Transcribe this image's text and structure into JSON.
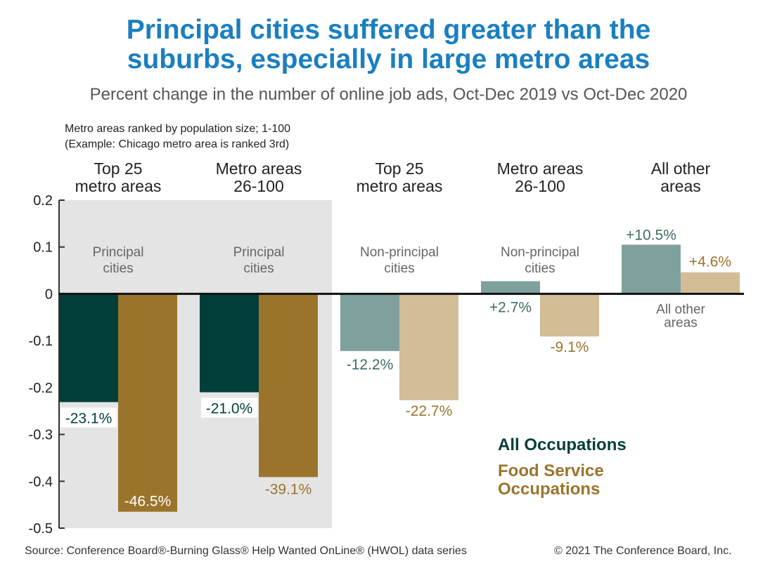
{
  "title_line1": "Principal cities suffered greater than the",
  "title_line2": "suburbs, especially in large metro areas",
  "subtitle": "Percent change in the number of online job ads, Oct-Dec 2019 vs Oct-Dec 2020",
  "note_line1": "Metro areas ranked by population size; 1-100",
  "note_line2": "(Example: Chicago metro area is ranked 3rd)",
  "source": "Source: Conference Board®-Burning Glass® Help Wanted OnLine® (HWOL) data series",
  "copyright": "© 2021 The Conference Board, Inc.",
  "colors": {
    "title": "#1a7fc1",
    "all_principal": "#033f3a",
    "food_principal": "#9b742b",
    "all_other": "#7fa19e",
    "food_other": "#d3bd97",
    "shade": "#e4e4e4"
  },
  "legend": {
    "all_occupations": "All Occupations",
    "food_line1": "Food Service",
    "food_line2": "Occupations"
  },
  "chart_data": {
    "type": "bar",
    "ylim": [
      -0.5,
      0.2
    ],
    "yticks": [
      "0.2",
      "0.1",
      "0",
      "-0.1",
      "-0.2",
      "-0.3",
      "-0.4",
      "-0.5"
    ],
    "grid": false,
    "legend_position": "bottom-right",
    "groups": [
      {
        "header": [
          "Top 25",
          "metro areas"
        ],
        "label": [
          "Principal",
          "cities"
        ],
        "shaded": true,
        "all": -0.231,
        "food": -0.465,
        "all_label": "-23.1%",
        "food_label": "-46.5%"
      },
      {
        "header": [
          "Metro areas",
          "26-100"
        ],
        "label": [
          "Principal",
          "cities"
        ],
        "shaded": true,
        "all": -0.21,
        "food": -0.391,
        "all_label": "-21.0%",
        "food_label": "-39.1%"
      },
      {
        "header": [
          "Top 25",
          "metro areas"
        ],
        "label": [
          "Non-principal",
          "cities"
        ],
        "shaded": false,
        "all": -0.122,
        "food": -0.227,
        "all_label": "-12.2%",
        "food_label": "-22.7%"
      },
      {
        "header": [
          "Metro areas",
          "26-100"
        ],
        "label": [
          "Non-principal",
          "cities"
        ],
        "shaded": false,
        "all": 0.027,
        "food": -0.091,
        "all_label": "+2.7%",
        "food_label": "-9.1%"
      },
      {
        "header": [
          "All other",
          "areas"
        ],
        "label": [
          "All other",
          "areas"
        ],
        "shaded": false,
        "all": 0.105,
        "food": 0.046,
        "all_label": "+10.5%",
        "food_label": "+4.6%"
      }
    ],
    "series": [
      {
        "name": "All Occupations"
      },
      {
        "name": "Food Service Occupations"
      }
    ]
  }
}
